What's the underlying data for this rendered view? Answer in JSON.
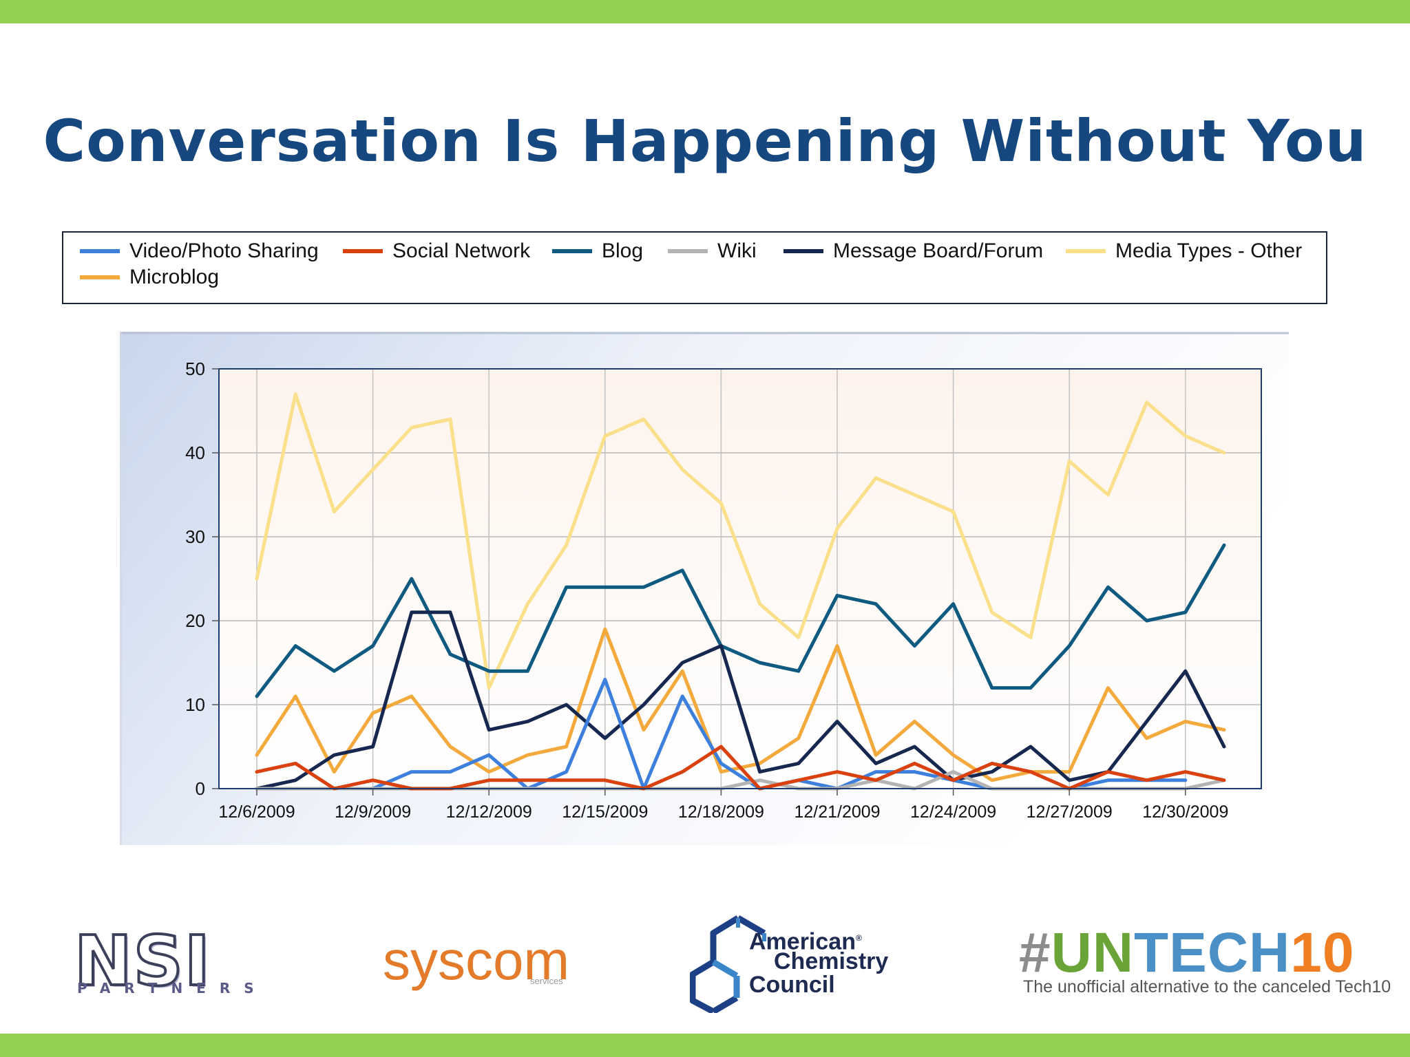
{
  "slide": {
    "title": "Conversation Is Happening Without You",
    "accent_color": "#92d050",
    "title_color": "#17477f"
  },
  "chart_data": {
    "type": "line",
    "title": "",
    "xlabel": "",
    "ylabel": "",
    "ylim": [
      0,
      50
    ],
    "yticks": [
      0,
      10,
      20,
      30,
      40,
      50
    ],
    "grid": true,
    "legend_position": "top",
    "x": [
      "12/6/2009",
      "12/7/2009",
      "12/8/2009",
      "12/9/2009",
      "12/10/2009",
      "12/11/2009",
      "12/12/2009",
      "12/13/2009",
      "12/14/2009",
      "12/15/2009",
      "12/16/2009",
      "12/17/2009",
      "12/18/2009",
      "12/19/2009",
      "12/20/2009",
      "12/21/2009",
      "12/22/2009",
      "12/23/2009",
      "12/24/2009",
      "12/25/2009",
      "12/26/2009",
      "12/27/2009",
      "12/28/2009",
      "12/29/2009",
      "12/30/2009",
      "12/31/2009"
    ],
    "x_tick_labels": [
      "12/6/2009",
      "12/9/2009",
      "12/12/2009",
      "12/15/2009",
      "12/18/2009",
      "12/21/2009",
      "12/24/2009",
      "12/27/2009",
      "12/30/2009"
    ],
    "series": [
      {
        "name": "Video/Photo Sharing",
        "color": "#3d7fdc",
        "values": [
          0,
          0,
          0,
          0,
          2,
          2,
          4,
          0,
          2,
          13,
          0,
          11,
          3,
          0,
          1,
          0,
          2,
          2,
          1,
          0,
          0,
          0,
          1,
          1,
          1,
          null
        ]
      },
      {
        "name": "Social Network",
        "color": "#d9410f",
        "values": [
          2,
          3,
          0,
          1,
          0,
          0,
          1,
          1,
          1,
          1,
          0,
          2,
          5,
          0,
          1,
          2,
          1,
          3,
          1,
          3,
          2,
          0,
          2,
          1,
          2,
          1
        ]
      },
      {
        "name": "Blog",
        "color": "#0e5a80",
        "values": [
          11,
          17,
          14,
          17,
          25,
          16,
          14,
          14,
          24,
          24,
          24,
          26,
          17,
          15,
          14,
          23,
          22,
          17,
          22,
          12,
          12,
          17,
          24,
          20,
          21,
          29
        ]
      },
      {
        "name": "Wiki",
        "color": "#b4b4b4",
        "values": [
          0,
          0,
          0,
          0,
          0,
          0,
          0,
          0,
          0,
          0,
          0,
          0,
          0,
          1,
          0,
          0,
          1,
          0,
          2,
          0,
          0,
          0,
          0,
          0,
          0,
          1
        ]
      },
      {
        "name": "Message Board/Forum",
        "color": "#16284f",
        "values": [
          0,
          1,
          4,
          5,
          21,
          21,
          7,
          8,
          10,
          6,
          10,
          15,
          17,
          2,
          3,
          8,
          3,
          5,
          1,
          2,
          5,
          1,
          2,
          8,
          14,
          5
        ]
      },
      {
        "name": "Media Types - Other",
        "color": "#fbe08c",
        "values": [
          25,
          47,
          33,
          38,
          43,
          44,
          12,
          22,
          29,
          42,
          44,
          38,
          34,
          22,
          18,
          31,
          37,
          35,
          33,
          21,
          18,
          39,
          35,
          46,
          42,
          40
        ]
      },
      {
        "name": "Microblog",
        "color": "#f3a93c",
        "values": [
          4,
          11,
          2,
          9,
          11,
          5,
          2,
          4,
          5,
          19,
          7,
          14,
          2,
          3,
          6,
          17,
          4,
          8,
          4,
          1,
          2,
          2,
          12,
          6,
          8,
          7
        ]
      }
    ]
  },
  "logos": {
    "nsi": {
      "word": "NSI",
      "sub": "PARTNERS"
    },
    "syscom": {
      "word": "syscom",
      "sub": "services"
    },
    "acc": {
      "line1": "American",
      "mark": "®",
      "line2": "Chemistry",
      "line3": "Council"
    },
    "untech": {
      "hash": "#",
      "un": "UN",
      "tech": "TECH",
      "ten": "10",
      "tagline": "The unofficial alternative to the canceled Tech10"
    }
  }
}
